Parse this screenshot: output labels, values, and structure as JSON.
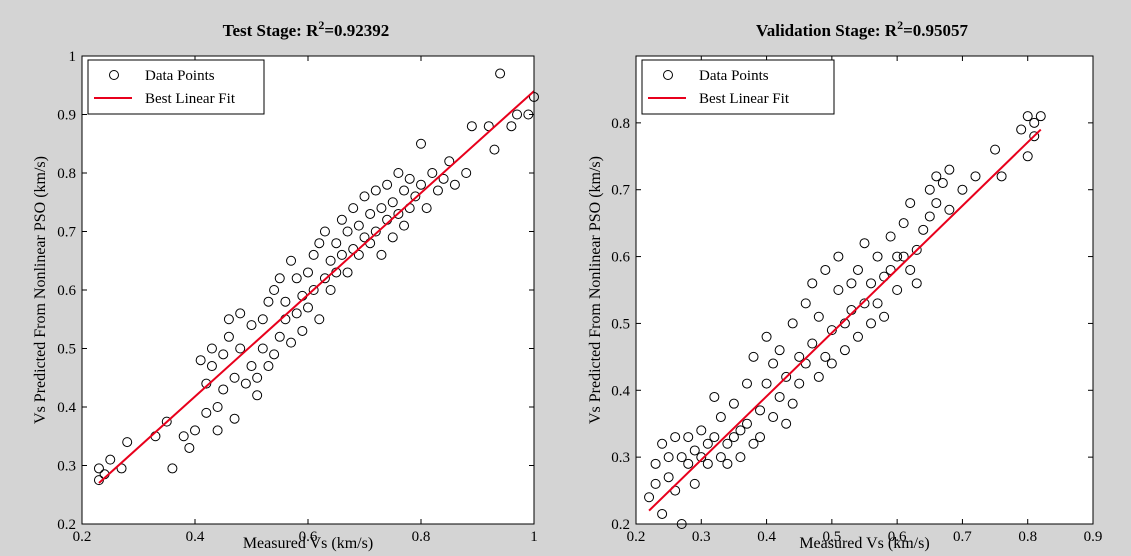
{
  "chart_data": [
    {
      "type": "scatter",
      "title": "Test Stage: R",
      "title_superscript": "2",
      "title_value": "=0.92392",
      "xlabel": "Measured Vs (km/s)",
      "ylabel": "Vs Predicted From Nonlinear PSO (km/s)",
      "xlim": [
        0.2,
        1.0
      ],
      "ylim": [
        0.2,
        1.0
      ],
      "xticks": [
        0.2,
        0.4,
        0.6,
        0.8,
        1
      ],
      "xtick_labels": [
        "0.2",
        "0.4",
        "0.6",
        "0.8",
        "1"
      ],
      "yticks": [
        0.2,
        0.3,
        0.4,
        0.5,
        0.6,
        0.7,
        0.8,
        0.9,
        1
      ],
      "ytick_labels": [
        "0.2",
        "0.3",
        "0.4",
        "0.5",
        "0.6",
        "0.7",
        "0.8",
        "0.9",
        "1"
      ],
      "grid": false,
      "legend_position": "top-left",
      "series": [
        {
          "name": "Data Points",
          "kind": "scatter",
          "color": "#000000",
          "marker": "circle-open",
          "points": [
            [
              0.23,
              0.295
            ],
            [
              0.23,
              0.275
            ],
            [
              0.24,
              0.285
            ],
            [
              0.25,
              0.31
            ],
            [
              0.27,
              0.295
            ],
            [
              0.28,
              0.34
            ],
            [
              0.33,
              0.35
            ],
            [
              0.35,
              0.375
            ],
            [
              0.36,
              0.295
            ],
            [
              0.38,
              0.35
            ],
            [
              0.39,
              0.33
            ],
            [
              0.4,
              0.36
            ],
            [
              0.41,
              0.48
            ],
            [
              0.42,
              0.44
            ],
            [
              0.42,
              0.39
            ],
            [
              0.43,
              0.47
            ],
            [
              0.43,
              0.5
            ],
            [
              0.44,
              0.4
            ],
            [
              0.44,
              0.36
            ],
            [
              0.45,
              0.43
            ],
            [
              0.45,
              0.49
            ],
            [
              0.46,
              0.52
            ],
            [
              0.46,
              0.55
            ],
            [
              0.47,
              0.45
            ],
            [
              0.47,
              0.38
            ],
            [
              0.48,
              0.56
            ],
            [
              0.48,
              0.5
            ],
            [
              0.49,
              0.44
            ],
            [
              0.5,
              0.47
            ],
            [
              0.5,
              0.54
            ],
            [
              0.51,
              0.45
            ],
            [
              0.51,
              0.42
            ],
            [
              0.52,
              0.55
            ],
            [
              0.52,
              0.5
            ],
            [
              0.53,
              0.58
            ],
            [
              0.53,
              0.47
            ],
            [
              0.54,
              0.49
            ],
            [
              0.54,
              0.6
            ],
            [
              0.55,
              0.52
            ],
            [
              0.55,
              0.62
            ],
            [
              0.56,
              0.55
            ],
            [
              0.56,
              0.58
            ],
            [
              0.57,
              0.51
            ],
            [
              0.57,
              0.65
            ],
            [
              0.58,
              0.56
            ],
            [
              0.58,
              0.62
            ],
            [
              0.59,
              0.59
            ],
            [
              0.59,
              0.53
            ],
            [
              0.6,
              0.63
            ],
            [
              0.6,
              0.57
            ],
            [
              0.61,
              0.66
            ],
            [
              0.61,
              0.6
            ],
            [
              0.62,
              0.68
            ],
            [
              0.62,
              0.55
            ],
            [
              0.63,
              0.62
            ],
            [
              0.63,
              0.7
            ],
            [
              0.64,
              0.65
            ],
            [
              0.64,
              0.6
            ],
            [
              0.65,
              0.68
            ],
            [
              0.65,
              0.63
            ],
            [
              0.66,
              0.72
            ],
            [
              0.66,
              0.66
            ],
            [
              0.67,
              0.7
            ],
            [
              0.67,
              0.63
            ],
            [
              0.68,
              0.74
            ],
            [
              0.68,
              0.67
            ],
            [
              0.69,
              0.71
            ],
            [
              0.69,
              0.66
            ],
            [
              0.7,
              0.76
            ],
            [
              0.7,
              0.69
            ],
            [
              0.71,
              0.73
            ],
            [
              0.71,
              0.68
            ],
            [
              0.72,
              0.77
            ],
            [
              0.72,
              0.7
            ],
            [
              0.73,
              0.74
            ],
            [
              0.73,
              0.66
            ],
            [
              0.74,
              0.78
            ],
            [
              0.74,
              0.72
            ],
            [
              0.75,
              0.75
            ],
            [
              0.75,
              0.69
            ],
            [
              0.76,
              0.8
            ],
            [
              0.76,
              0.73
            ],
            [
              0.77,
              0.77
            ],
            [
              0.77,
              0.71
            ],
            [
              0.78,
              0.79
            ],
            [
              0.78,
              0.74
            ],
            [
              0.79,
              0.76
            ],
            [
              0.8,
              0.85
            ],
            [
              0.8,
              0.78
            ],
            [
              0.81,
              0.74
            ],
            [
              0.82,
              0.8
            ],
            [
              0.83,
              0.77
            ],
            [
              0.84,
              0.79
            ],
            [
              0.85,
              0.82
            ],
            [
              0.86,
              0.78
            ],
            [
              0.88,
              0.8
            ],
            [
              0.89,
              0.88
            ],
            [
              0.92,
              0.88
            ],
            [
              0.93,
              0.84
            ],
            [
              0.94,
              0.97
            ],
            [
              0.96,
              0.88
            ],
            [
              0.97,
              0.9
            ],
            [
              0.99,
              0.9
            ],
            [
              1.0,
              0.93
            ]
          ]
        },
        {
          "name": "Best Linear Fit",
          "kind": "line",
          "color": "#e8001c",
          "points": [
            [
              0.23,
              0.27
            ],
            [
              1.0,
              0.94
            ]
          ]
        }
      ]
    },
    {
      "type": "scatter",
      "title": "Validation Stage: R",
      "title_superscript": "2",
      "title_value": "=0.95057",
      "xlabel": "Measured Vs (km/s)",
      "ylabel": "Vs Predicted From Nonlinear PSO (km/s)",
      "xlim": [
        0.2,
        0.9
      ],
      "ylim": [
        0.2,
        0.9
      ],
      "xticks": [
        0.2,
        0.3,
        0.4,
        0.5,
        0.6,
        0.7,
        0.8,
        0.9
      ],
      "xtick_labels": [
        "0.2",
        "0.3",
        "0.4",
        "0.5",
        "0.6",
        "0.7",
        "0.8",
        "0.9"
      ],
      "yticks": [
        0.2,
        0.3,
        0.4,
        0.5,
        0.6,
        0.7,
        0.8
      ],
      "ytick_labels": [
        "0.2",
        "0.3",
        "0.4",
        "0.5",
        "0.6",
        "0.7",
        "0.8"
      ],
      "grid": false,
      "legend_position": "top-left",
      "series": [
        {
          "name": "Data Points",
          "kind": "scatter",
          "color": "#000000",
          "marker": "circle-open",
          "points": [
            [
              0.22,
              0.24
            ],
            [
              0.23,
              0.29
            ],
            [
              0.23,
              0.26
            ],
            [
              0.24,
              0.32
            ],
            [
              0.24,
              0.215
            ],
            [
              0.25,
              0.3
            ],
            [
              0.25,
              0.27
            ],
            [
              0.26,
              0.33
            ],
            [
              0.26,
              0.25
            ],
            [
              0.27,
              0.2
            ],
            [
              0.27,
              0.3
            ],
            [
              0.28,
              0.29
            ],
            [
              0.28,
              0.33
            ],
            [
              0.29,
              0.31
            ],
            [
              0.29,
              0.26
            ],
            [
              0.3,
              0.3
            ],
            [
              0.3,
              0.34
            ],
            [
              0.31,
              0.32
            ],
            [
              0.31,
              0.29
            ],
            [
              0.32,
              0.39
            ],
            [
              0.32,
              0.33
            ],
            [
              0.33,
              0.3
            ],
            [
              0.33,
              0.36
            ],
            [
              0.34,
              0.32
            ],
            [
              0.34,
              0.29
            ],
            [
              0.35,
              0.38
            ],
            [
              0.35,
              0.33
            ],
            [
              0.36,
              0.34
            ],
            [
              0.36,
              0.3
            ],
            [
              0.37,
              0.41
            ],
            [
              0.37,
              0.35
            ],
            [
              0.38,
              0.32
            ],
            [
              0.38,
              0.45
            ],
            [
              0.39,
              0.37
            ],
            [
              0.39,
              0.33
            ],
            [
              0.4,
              0.48
            ],
            [
              0.4,
              0.41
            ],
            [
              0.41,
              0.36
            ],
            [
              0.41,
              0.44
            ],
            [
              0.42,
              0.39
            ],
            [
              0.42,
              0.46
            ],
            [
              0.43,
              0.35
            ],
            [
              0.43,
              0.42
            ],
            [
              0.44,
              0.5
            ],
            [
              0.44,
              0.38
            ],
            [
              0.45,
              0.45
            ],
            [
              0.45,
              0.41
            ],
            [
              0.46,
              0.53
            ],
            [
              0.46,
              0.44
            ],
            [
              0.47,
              0.56
            ],
            [
              0.47,
              0.47
            ],
            [
              0.48,
              0.42
            ],
            [
              0.48,
              0.51
            ],
            [
              0.49,
              0.45
            ],
            [
              0.49,
              0.58
            ],
            [
              0.5,
              0.49
            ],
            [
              0.5,
              0.44
            ],
            [
              0.51,
              0.55
            ],
            [
              0.51,
              0.6
            ],
            [
              0.52,
              0.5
            ],
            [
              0.52,
              0.46
            ],
            [
              0.53,
              0.56
            ],
            [
              0.53,
              0.52
            ],
            [
              0.54,
              0.48
            ],
            [
              0.54,
              0.58
            ],
            [
              0.55,
              0.53
            ],
            [
              0.55,
              0.62
            ],
            [
              0.56,
              0.5
            ],
            [
              0.56,
              0.56
            ],
            [
              0.57,
              0.6
            ],
            [
              0.57,
              0.53
            ],
            [
              0.58,
              0.57
            ],
            [
              0.58,
              0.51
            ],
            [
              0.59,
              0.63
            ],
            [
              0.59,
              0.58
            ],
            [
              0.6,
              0.6
            ],
            [
              0.6,
              0.55
            ],
            [
              0.61,
              0.65
            ],
            [
              0.61,
              0.6
            ],
            [
              0.62,
              0.58
            ],
            [
              0.62,
              0.68
            ],
            [
              0.63,
              0.61
            ],
            [
              0.63,
              0.56
            ],
            [
              0.64,
              0.64
            ],
            [
              0.65,
              0.7
            ],
            [
              0.65,
              0.66
            ],
            [
              0.66,
              0.72
            ],
            [
              0.66,
              0.68
            ],
            [
              0.67,
              0.71
            ],
            [
              0.68,
              0.73
            ],
            [
              0.68,
              0.67
            ],
            [
              0.7,
              0.7
            ],
            [
              0.72,
              0.72
            ],
            [
              0.75,
              0.76
            ],
            [
              0.76,
              0.72
            ],
            [
              0.79,
              0.79
            ],
            [
              0.8,
              0.81
            ],
            [
              0.8,
              0.75
            ],
            [
              0.81,
              0.78
            ],
            [
              0.81,
              0.8
            ],
            [
              0.82,
              0.81
            ]
          ]
        },
        {
          "name": "Best Linear Fit",
          "kind": "line",
          "color": "#e8001c",
          "points": [
            [
              0.22,
              0.22
            ],
            [
              0.82,
              0.79
            ]
          ]
        }
      ]
    }
  ]
}
